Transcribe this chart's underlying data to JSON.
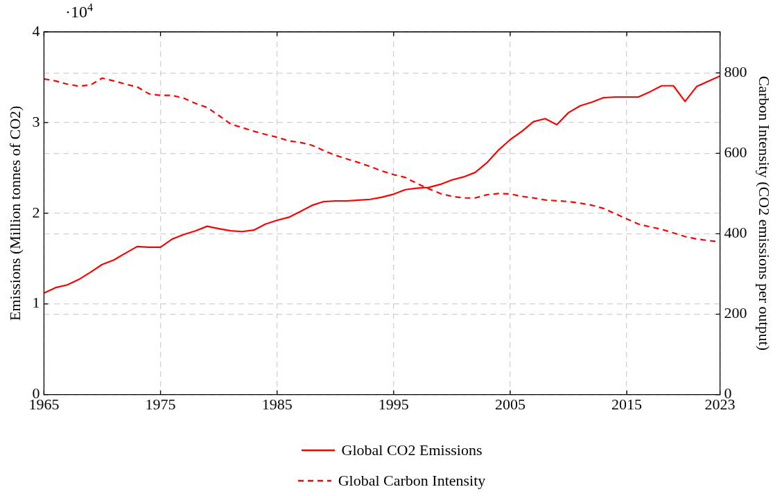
{
  "chart_data": {
    "type": "line",
    "xlabel": null,
    "ylabel": "Emissions (Million tonnes of CO2)",
    "y2label": "Carbon Intensity (CO2 emissions per output)",
    "annotations": [
      "·10$^{4}$"
    ],
    "x": [
      1965,
      1966,
      1967,
      1968,
      1969,
      1970,
      1971,
      1972,
      1973,
      1974,
      1975,
      1976,
      1977,
      1978,
      1979,
      1980,
      1981,
      1982,
      1983,
      1984,
      1985,
      1986,
      1987,
      1988,
      1989,
      1990,
      1991,
      1992,
      1993,
      1994,
      1995,
      1996,
      1997,
      1998,
      1999,
      2000,
      2001,
      2002,
      2003,
      2004,
      2005,
      2006,
      2007,
      2008,
      2009,
      2010,
      2011,
      2012,
      2013,
      2014,
      2015,
      2016,
      2017,
      2018,
      2019,
      2020,
      2021,
      2022,
      2023
    ],
    "series": [
      {
        "name": "Global CO2 Emissions",
        "color": "#ff0000",
        "line_style": "solid",
        "values": [
          1.12,
          1.18,
          1.21,
          1.27,
          1.35,
          1.435,
          1.485,
          1.56,
          1.633,
          1.625,
          1.625,
          1.715,
          1.765,
          1.806,
          1.856,
          1.83,
          1.806,
          1.798,
          1.814,
          1.88,
          1.922,
          1.955,
          2.02,
          2.087,
          2.128,
          2.136,
          2.136,
          2.144,
          2.153,
          2.177,
          2.21,
          2.26,
          2.276,
          2.284,
          2.318,
          2.367,
          2.4,
          2.45,
          2.557,
          2.697,
          2.812,
          2.903,
          3.01,
          3.043,
          2.977,
          3.109,
          3.184,
          3.225,
          3.274,
          3.282,
          3.282,
          3.282,
          3.34,
          3.406,
          3.406,
          3.233,
          3.398,
          3.456,
          3.513
        ]
      },
      {
        "name": "Global Carbon Intensity",
        "color": "#ff0000",
        "line_style": "dashed",
        "axis": "y2",
        "values": [
          785,
          780,
          772,
          767,
          770,
          787,
          780,
          772,
          765,
          748,
          744,
          744,
          737,
          724,
          714,
          694,
          673,
          664,
          655,
          647,
          640,
          631,
          627,
          620,
          607,
          595,
          586,
          577,
          567,
          556,
          547,
          540,
          525,
          512,
          500,
          493,
          489,
          489,
          497,
          500,
          499,
          493,
          489,
          484,
          482,
          480,
          476,
          471,
          463,
          450,
          437,
          424,
          417,
          411,
          402,
          393,
          387,
          383,
          380
        ]
      }
    ],
    "xlim": [
      1965,
      2023
    ],
    "xticks": [
      1965,
      1975,
      1985,
      1995,
      2005,
      2015,
      2023
    ],
    "ylim": [
      0,
      4
    ],
    "yticks": [
      0,
      1,
      2,
      3,
      4
    ],
    "y2lim": [
      0,
      902
    ],
    "y2ticks": [
      0,
      200,
      400,
      600,
      800
    ],
    "grid": true,
    "legend": "bottom",
    "marker": "none"
  }
}
